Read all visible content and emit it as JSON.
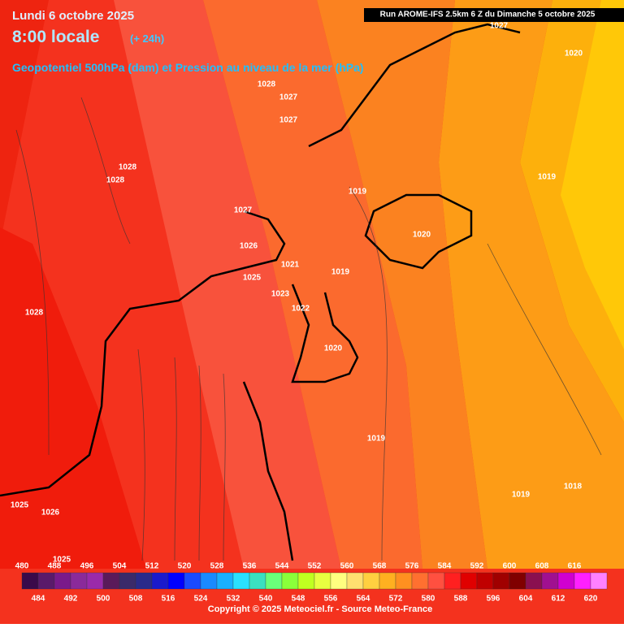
{
  "header": {
    "date": "Lundi 6 octobre 2025",
    "time": "8:00 locale",
    "lead": "(+ 24h)",
    "subtitle": "Geopotentiel 500hPa (dam) et Pression au niveau de la mer (hPa)",
    "run": "Run AROME-IFS 2.5km 6 Z du Dimanche 5 octobre 2025"
  },
  "pressure_labels": [
    1027,
    1020,
    1028,
    1027,
    1027,
    1028,
    1028,
    1019,
    1019,
    1027,
    1020,
    1026,
    1021,
    1019,
    1025,
    1023,
    1028,
    1022,
    1020,
    1019,
    1018,
    1019,
    1025,
    1026,
    1025
  ],
  "scale": {
    "top_labels": [
      480,
      488,
      496,
      504,
      512,
      520,
      528,
      536,
      544,
      552,
      560,
      568,
      576,
      584,
      592,
      600,
      608,
      616
    ],
    "bottom_labels": [
      484,
      492,
      500,
      508,
      516,
      524,
      532,
      540,
      548,
      556,
      564,
      572,
      580,
      588,
      596,
      604,
      612,
      620
    ],
    "colors": [
      "#3a0a4a",
      "#5a1a6a",
      "#7a1a8a",
      "#8a2a9a",
      "#9a2aaa",
      "#5a1a5a",
      "#3a2a6a",
      "#2a2a8a",
      "#1a1acc",
      "#0000ff",
      "#1a4aff",
      "#1a8aff",
      "#1ab0ff",
      "#2ae0ff",
      "#3ae0c0",
      "#6aff7a",
      "#8aff3a",
      "#c0ff20",
      "#e8ff40",
      "#ffff80",
      "#ffe070",
      "#ffd040",
      "#ffb020",
      "#ff9020",
      "#ff7030",
      "#ff5040",
      "#ff2020",
      "#e00000",
      "#c00000",
      "#a00000",
      "#800000",
      "#8a1050",
      "#a01090",
      "#d000d0",
      "#ff20ff",
      "#ff80ff"
    ]
  },
  "footer": "Copyright © 2025 Meteociel.fr - Source Meteo-France"
}
